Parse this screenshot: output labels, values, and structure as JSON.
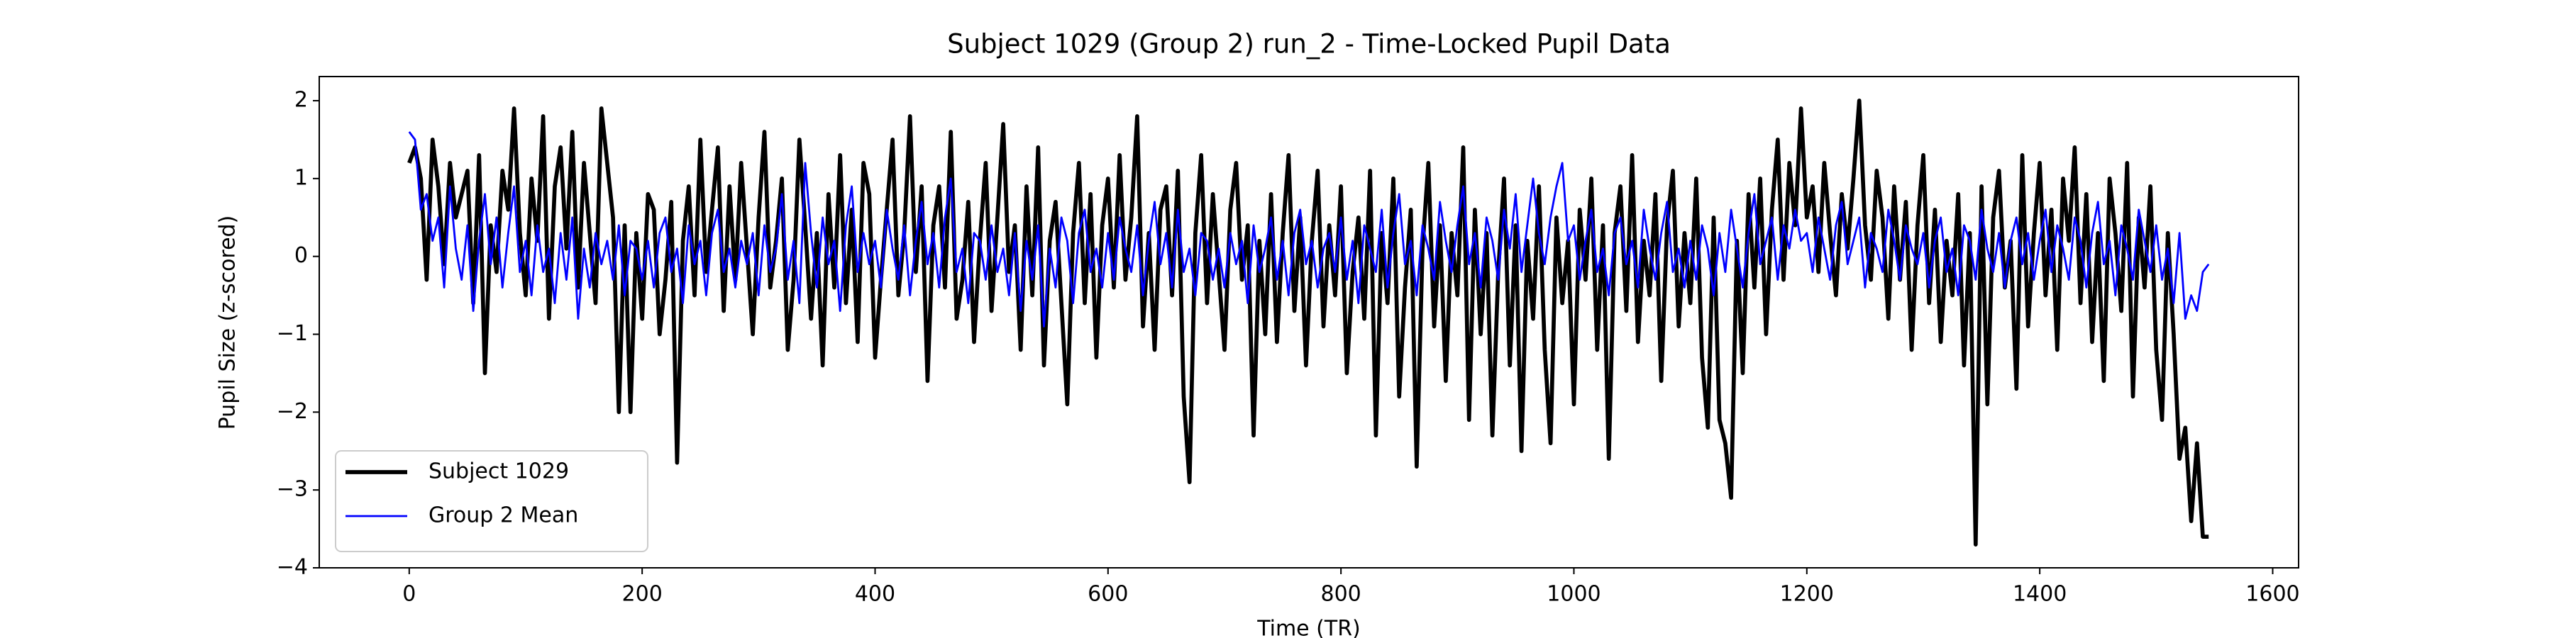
{
  "chart_data": {
    "type": "line",
    "title": "Subject 1029 (Group 2) run_2 - Time-Locked Pupil Data",
    "xlabel": "Time (TR)",
    "ylabel": "Pupil Size (z-scored)",
    "xlim": [
      -77.25,
      1622.25
    ],
    "ylim": [
      -4,
      2.31
    ],
    "xticks": [
      0,
      200,
      400,
      600,
      800,
      1000,
      1200,
      1400,
      1600
    ],
    "yticks": [
      {
        "value": -4,
        "label": "−4"
      },
      {
        "value": -3,
        "label": "−3"
      },
      {
        "value": -2,
        "label": "−2"
      },
      {
        "value": -1,
        "label": "−1"
      },
      0,
      1,
      2
    ],
    "legend": "lower left",
    "x": [
      0,
      5,
      10,
      15,
      20,
      25,
      30,
      35,
      40,
      45,
      50,
      55,
      60,
      65,
      70,
      75,
      80,
      85,
      90,
      95,
      100,
      105,
      110,
      115,
      120,
      125,
      130,
      135,
      140,
      145,
      150,
      155,
      160,
      165,
      170,
      175,
      180,
      185,
      190,
      195,
      200,
      205,
      210,
      215,
      220,
      225,
      230,
      235,
      240,
      245,
      250,
      255,
      260,
      265,
      270,
      275,
      280,
      285,
      290,
      295,
      300,
      305,
      310,
      315,
      320,
      325,
      330,
      335,
      340,
      345,
      350,
      355,
      360,
      365,
      370,
      375,
      380,
      385,
      390,
      395,
      400,
      405,
      410,
      415,
      420,
      425,
      430,
      435,
      440,
      445,
      450,
      455,
      460,
      465,
      470,
      475,
      480,
      485,
      490,
      495,
      500,
      505,
      510,
      515,
      520,
      525,
      530,
      535,
      540,
      545,
      550,
      555,
      560,
      565,
      570,
      575,
      580,
      585,
      590,
      595,
      600,
      605,
      610,
      615,
      620,
      625,
      630,
      635,
      640,
      645,
      650,
      655,
      660,
      665,
      670,
      675,
      680,
      685,
      690,
      695,
      700,
      705,
      710,
      715,
      720,
      725,
      730,
      735,
      740,
      745,
      750,
      755,
      760,
      765,
      770,
      775,
      780,
      785,
      790,
      795,
      800,
      805,
      810,
      815,
      820,
      825,
      830,
      835,
      840,
      845,
      850,
      855,
      860,
      865,
      870,
      875,
      880,
      885,
      890,
      895,
      900,
      905,
      910,
      915,
      920,
      925,
      930,
      935,
      940,
      945,
      950,
      955,
      960,
      965,
      970,
      975,
      980,
      985,
      990,
      995,
      1000,
      1005,
      1010,
      1015,
      1020,
      1025,
      1030,
      1035,
      1040,
      1045,
      1050,
      1055,
      1060,
      1065,
      1070,
      1075,
      1080,
      1085,
      1090,
      1095,
      1100,
      1105,
      1110,
      1115,
      1120,
      1125,
      1130,
      1135,
      1140,
      1145,
      1150,
      1155,
      1160,
      1165,
      1170,
      1175,
      1180,
      1185,
      1190,
      1195,
      1200,
      1205,
      1210,
      1215,
      1220,
      1225,
      1230,
      1235,
      1240,
      1245,
      1250,
      1255,
      1260,
      1265,
      1270,
      1275,
      1280,
      1285,
      1290,
      1295,
      1300,
      1305,
      1310,
      1315,
      1320,
      1325,
      1330,
      1335,
      1340,
      1345,
      1350,
      1355,
      1360,
      1365,
      1370,
      1375,
      1380,
      1385,
      1390,
      1395,
      1400,
      1405,
      1410,
      1415,
      1420,
      1425,
      1430,
      1435,
      1440,
      1445,
      1450,
      1455,
      1460,
      1465,
      1470,
      1475,
      1480,
      1485,
      1490,
      1495,
      1500,
      1505,
      1510,
      1515,
      1520,
      1525,
      1530,
      1535,
      1540,
      1545
    ],
    "series": [
      {
        "name": "Subject 1029",
        "color": "#000000",
        "values": [
          1.2,
          1.4,
          1.0,
          -0.3,
          1.5,
          0.9,
          -0.1,
          1.2,
          0.5,
          0.8,
          1.1,
          -0.6,
          1.3,
          -1.5,
          0.4,
          -0.2,
          1.1,
          0.6,
          1.9,
          0.3,
          -0.5,
          1.0,
          0.2,
          1.8,
          -0.8,
          0.9,
          1.4,
          0.1,
          1.6,
          -0.4,
          1.2,
          0.3,
          -0.6,
          1.9,
          1.2,
          0.5,
          -2.0,
          0.4,
          -2.0,
          0.3,
          -0.8,
          0.8,
          0.6,
          -1.0,
          -0.3,
          0.7,
          -2.65,
          0.2,
          0.9,
          -0.5,
          1.5,
          -0.2,
          0.6,
          1.4,
          -0.7,
          0.9,
          -0.3,
          1.2,
          0.1,
          -1.0,
          0.5,
          1.6,
          -0.4,
          0.2,
          1.0,
          -1.2,
          -0.3,
          1.5,
          0.4,
          -0.8,
          0.3,
          -1.4,
          0.8,
          -0.4,
          1.3,
          -0.6,
          0.6,
          -1.1,
          1.2,
          0.8,
          -1.3,
          -0.3,
          0.6,
          1.5,
          -0.5,
          0.3,
          1.8,
          -0.2,
          0.9,
          -1.6,
          0.4,
          0.9,
          -0.4,
          1.6,
          -0.8,
          -0.3,
          0.7,
          -1.1,
          0.2,
          1.2,
          -0.7,
          0.5,
          1.7,
          -0.2,
          0.4,
          -1.2,
          0.9,
          -0.5,
          1.4,
          -1.4,
          0.2,
          0.7,
          -0.6,
          -1.9,
          0.3,
          1.2,
          -0.6,
          0.8,
          -1.3,
          0.4,
          1.0,
          -0.4,
          1.3,
          -0.3,
          0.5,
          1.8,
          -0.9,
          0.3,
          -1.2,
          0.6,
          0.9,
          -0.5,
          1.1,
          -1.8,
          -2.9,
          0.3,
          1.3,
          -0.6,
          0.8,
          -0.2,
          -1.2,
          0.6,
          1.2,
          -0.3,
          0.4,
          -2.3,
          0.2,
          -1.0,
          0.8,
          -1.1,
          0.3,
          1.3,
          -0.7,
          0.5,
          -1.4,
          0.2,
          1.1,
          -0.9,
          0.4,
          -0.5,
          0.9,
          -1.5,
          -0.2,
          0.5,
          -0.8,
          1.1,
          -2.3,
          0.3,
          -0.6,
          1.0,
          -1.8,
          -0.4,
          0.6,
          -2.7,
          0.1,
          1.2,
          -0.9,
          0.4,
          -1.6,
          0.3,
          -0.5,
          1.4,
          -2.1,
          0.6,
          -1.0,
          0.3,
          -2.3,
          -0.2,
          1.0,
          -1.4,
          0.4,
          -2.5,
          0.2,
          -0.8,
          0.9,
          -1.2,
          -2.4,
          0.5,
          -0.6,
          0.2,
          -1.9,
          0.6,
          -0.3,
          1.0,
          -1.2,
          0.4,
          -2.6,
          0.3,
          0.9,
          -0.7,
          1.3,
          -1.1,
          0.2,
          -0.5,
          0.8,
          -1.6,
          0.4,
          1.1,
          -0.9,
          0.3,
          -0.6,
          1.0,
          -1.3,
          -2.2,
          0.5,
          -2.1,
          -2.4,
          -3.1,
          0.2,
          -1.5,
          0.8,
          -0.4,
          1.0,
          -1.0,
          0.6,
          1.5,
          -0.3,
          1.2,
          0.4,
          1.9,
          0.5,
          0.9,
          -0.2,
          1.2,
          0.3,
          -0.5,
          0.8,
          0.1,
          1.0,
          2.0,
          0.4,
          -0.3,
          1.1,
          0.5,
          -0.8,
          0.9,
          -0.3,
          0.7,
          -1.2,
          0.4,
          1.3,
          -0.6,
          0.6,
          -1.1,
          0.2,
          -0.5,
          0.8,
          -1.4,
          0.3,
          -3.7,
          0.9,
          -1.9,
          0.5,
          1.1,
          -0.4,
          0.2,
          -1.7,
          1.3,
          -0.9,
          0.3,
          1.2,
          -0.5,
          0.6,
          -1.2,
          1.0,
          0.2,
          1.4,
          -0.6,
          0.8,
          -1.1,
          0.3,
          -1.6,
          1.0,
          0.3,
          -0.7,
          1.2,
          -1.8,
          0.5,
          -0.4,
          0.9,
          -1.2,
          -2.1,
          0.3,
          -1.0,
          -2.6,
          -2.2,
          -3.4,
          -2.4,
          -3.6,
          -3.6
        ]
      },
      {
        "name": "Group 2 Mean",
        "color": "#0000ff",
        "values": [
          1.6,
          1.5,
          0.6,
          0.8,
          0.2,
          0.5,
          -0.4,
          0.9,
          0.1,
          -0.3,
          0.4,
          -0.7,
          0.2,
          0.8,
          -0.1,
          0.5,
          -0.4,
          0.3,
          0.9,
          -0.2,
          0.2,
          -0.5,
          0.4,
          -0.2,
          0.1,
          -0.6,
          0.3,
          -0.3,
          0.5,
          -0.8,
          0.1,
          -0.4,
          0.3,
          -0.1,
          0.2,
          -0.3,
          0.4,
          -0.5,
          0.2,
          0.1,
          -0.3,
          0.2,
          -0.4,
          0.3,
          0.5,
          -0.2,
          0.1,
          -0.6,
          0.4,
          -0.1,
          0.2,
          -0.5,
          0.3,
          0.6,
          -0.2,
          0.1,
          -0.4,
          0.2,
          -0.1,
          0.3,
          -0.5,
          0.4,
          -0.2,
          0.1,
          0.8,
          -0.3,
          0.2,
          -0.6,
          1.2,
          0.3,
          -0.4,
          0.5,
          -0.1,
          0.2,
          -0.7,
          0.4,
          0.9,
          -0.2,
          0.3,
          -0.1,
          0.2,
          -0.4,
          0.6,
          0.1,
          -0.3,
          0.4,
          -0.5,
          0.2,
          0.7,
          -0.1,
          0.3,
          -0.4,
          0.5,
          1.0,
          -0.2,
          0.1,
          -0.6,
          0.3,
          0.2,
          -0.3,
          0.4,
          -0.2,
          0.1,
          -0.5,
          0.3,
          -0.7,
          0.2,
          -0.3,
          0.4,
          -0.9,
          0.1,
          -0.4,
          0.5,
          0.2,
          -0.6,
          0.3,
          0.6,
          -0.2,
          0.1,
          -0.4,
          0.3,
          -0.3,
          0.5,
          0.1,
          -0.2,
          0.4,
          -0.5,
          0.2,
          0.7,
          -0.1,
          0.3,
          -0.4,
          0.6,
          -0.2,
          0.1,
          -0.5,
          0.3,
          0.2,
          -0.3,
          0.1,
          -0.4,
          0.3,
          -0.1,
          0.2,
          -0.6,
          0.4,
          -0.2,
          0.1,
          0.5,
          -0.3,
          0.2,
          -0.5,
          0.3,
          0.6,
          -0.1,
          0.2,
          -0.4,
          0.1,
          0.3,
          -0.2,
          0.5,
          -0.3,
          0.2,
          -0.6,
          0.4,
          0.1,
          -0.2,
          0.6,
          -0.4,
          0.3,
          0.8,
          -0.1,
          0.2,
          -0.5,
          0.4,
          0.1,
          -0.3,
          0.7,
          0.2,
          -0.2,
          0.4,
          0.9,
          -0.1,
          0.3,
          -0.4,
          0.5,
          0.2,
          -0.3,
          0.6,
          0.1,
          0.8,
          -0.2,
          0.4,
          1.0,
          0.3,
          -0.1,
          0.5,
          0.9,
          1.2,
          0.2,
          0.4,
          -0.3,
          0.2,
          0.6,
          -0.2,
          0.1,
          -0.5,
          0.3,
          0.5,
          -0.1,
          0.2,
          -0.4,
          0.6,
          0.1,
          -0.3,
          0.3,
          0.7,
          -0.2,
          0.1,
          -0.4,
          0.2,
          -0.3,
          0.4,
          0.1,
          -0.5,
          0.3,
          -0.2,
          0.6,
          0.1,
          -0.4,
          0.3,
          0.8,
          -0.1,
          0.2,
          0.5,
          -0.3,
          0.4,
          0.1,
          0.6,
          0.2,
          0.3,
          -0.2,
          0.5,
          0.1,
          -0.3,
          0.4,
          0.7,
          -0.1,
          0.2,
          0.5,
          -0.4,
          0.3,
          0.1,
          -0.2,
          0.6,
          0.2,
          -0.3,
          0.4,
          0.1,
          -0.1,
          0.3,
          -0.4,
          0.2,
          0.5,
          -0.2,
          0.1,
          -0.5,
          0.4,
          0.2,
          -0.3,
          0.6,
          0.1,
          -0.2,
          0.3,
          -0.4,
          0.2,
          0.5,
          -0.1,
          0.3,
          -0.3,
          0.2,
          0.6,
          -0.2,
          0.4,
          0.1,
          -0.3,
          0.5,
          0.2,
          -0.4,
          0.3,
          0.7,
          -0.1,
          0.2,
          -0.5,
          0.4,
          0.1,
          -0.3,
          0.6,
          0.2,
          -0.2,
          0.4,
          -0.3,
          0.1,
          -0.6,
          0.3,
          -0.8,
          -0.5,
          -0.7,
          -0.2,
          -0.1
        ]
      }
    ]
  }
}
